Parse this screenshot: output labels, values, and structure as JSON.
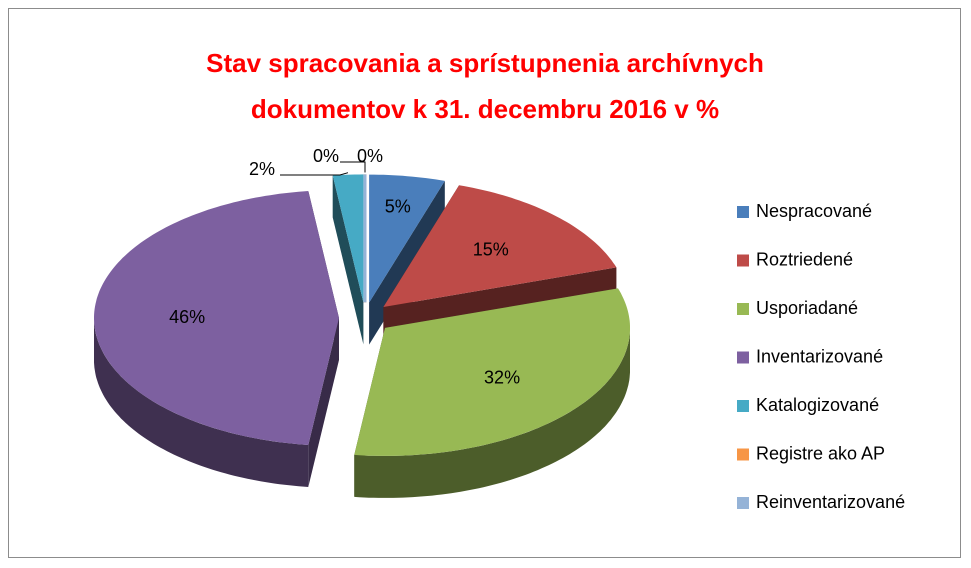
{
  "chart_data": {
    "type": "pie",
    "title": "Stav spracovania a sprístupnenia archívnych\ndokumentov k 31. decembru 2016 v %",
    "categories": [
      "Nespracované",
      "Roztriedené",
      "Usporiadané",
      "Inventarizované",
      "Katalogizované",
      "Registre ako AP",
      "Reinventarizované"
    ],
    "values": [
      5,
      15,
      32,
      46,
      2,
      0,
      0
    ],
    "value_labels": [
      "5%",
      "15%",
      "32%",
      "46%",
      "2%",
      "0%",
      "0%"
    ],
    "colors": [
      "#4a7ebb",
      "#be4b48",
      "#98b954",
      "#7d60a0",
      "#46aac5",
      "#f79646",
      "#95b3d7"
    ],
    "legend": "right"
  }
}
